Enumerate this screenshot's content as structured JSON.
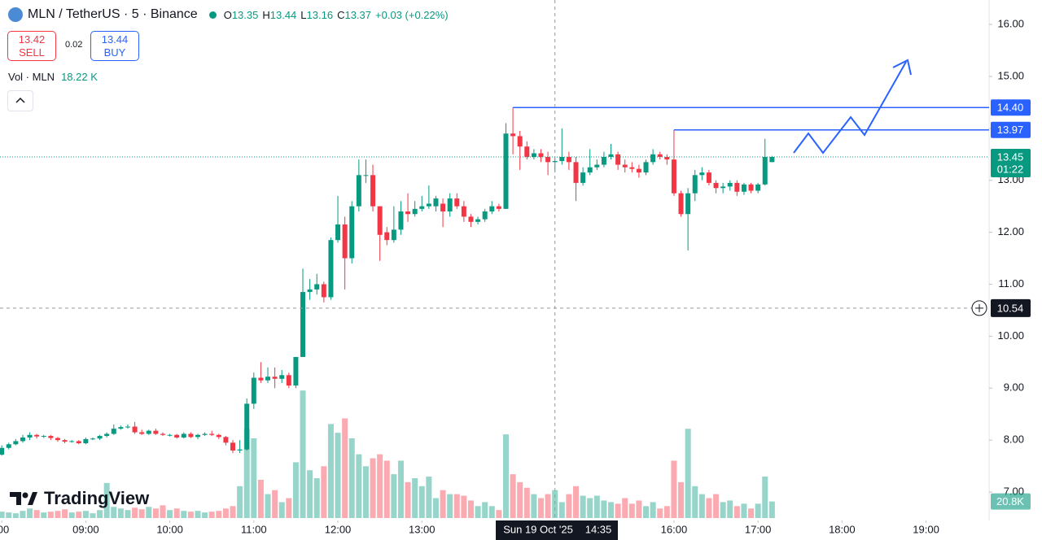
{
  "header": {
    "symbol": "MLN / TetherUS · 5 · Binance",
    "ohlc": [
      {
        "label": "O",
        "value": 13.35
      },
      {
        "label": "H",
        "value": 13.44
      },
      {
        "label": "L",
        "value": 13.16
      },
      {
        "label": "C",
        "value": 13.37
      }
    ],
    "change": "+0.03 (+0.22%)"
  },
  "trade": {
    "sell_price": 13.42,
    "sell": "SELL",
    "spread": 0.02,
    "buy_price": 13.44,
    "buy": "BUY"
  },
  "volume_legend": {
    "label": "Vol · MLN",
    "value": "18.22 K"
  },
  "logo": "TradingView",
  "chart_data": {
    "type": "candlestick",
    "up_color": "#089981",
    "down_color": "#f23645",
    "xlim": [
      -0.25,
      141
    ],
    "xticks": [
      {
        "value": 0,
        "label": ":00"
      },
      {
        "value": 12,
        "label": "09:00"
      },
      {
        "value": 24,
        "label": "10:00"
      },
      {
        "value": 36,
        "label": "11:00"
      },
      {
        "value": 48,
        "label": "12:00"
      },
      {
        "value": 60,
        "label": "13:00"
      },
      {
        "value": 96,
        "label": "16:00"
      },
      {
        "value": 108,
        "label": "17:00"
      },
      {
        "value": 120,
        "label": "18:00"
      },
      {
        "value": 132,
        "label": "19:00"
      }
    ],
    "ylim": [
      6.5,
      16.47
    ],
    "yticks": [
      {
        "value": 16,
        "label": "16.00"
      },
      {
        "value": 15,
        "label": "15.00"
      },
      {
        "value": 14,
        "label": "14.00"
      },
      {
        "value": 13,
        "label": "13.00"
      },
      {
        "value": 12,
        "label": "12.00"
      },
      {
        "value": 11,
        "label": "11.00"
      },
      {
        "value": 10,
        "label": "10.00"
      },
      {
        "value": 9,
        "label": "9.00"
      },
      {
        "value": 8,
        "label": "8.00"
      },
      {
        "value": 7,
        "label": "7.00"
      }
    ],
    "open": [
      7.72,
      7.85,
      7.92,
      7.98,
      8.05,
      8.1,
      8.07,
      8.08,
      8.04,
      8.0,
      7.97,
      7.98,
      7.94,
      8.02,
      8.03,
      8.08,
      8.12,
      8.22,
      8.25,
      8.26,
      8.15,
      8.12,
      8.18,
      8.12,
      8.1,
      8.1,
      8.05,
      8.12,
      8.06,
      8.1,
      8.12,
      8.1,
      8.06,
      7.95,
      7.8,
      7.82,
      8.7,
      9.2,
      9.15,
      9.22,
      9.18,
      9.25,
      9.05,
      9.6,
      10.85,
      10.9,
      11.0,
      10.75,
      11.85,
      12.15,
      11.5,
      12.5,
      13.1,
      13.1,
      12.5,
      12.0,
      11.85,
      12.05,
      12.4,
      12.35,
      12.45,
      12.5,
      12.5,
      12.55,
      12.4,
      12.65,
      12.5,
      12.3,
      12.2,
      12.25,
      12.4,
      12.5,
      12.45,
      13.9,
      13.85,
      13.65,
      13.45,
      13.52,
      13.45,
      13.35,
      13.37,
      13.45,
      13.35,
      12.95,
      13.15,
      13.25,
      13.3,
      13.45,
      13.5,
      13.3,
      13.25,
      13.22,
      13.15,
      13.35,
      13.5,
      13.45,
      13.4,
      12.75,
      12.35,
      12.75,
      13.1,
      13.15,
      12.95,
      12.85,
      12.88,
      12.95,
      12.78,
      12.92,
      12.8,
      12.92,
      13.35
    ],
    "high": [
      7.9,
      7.95,
      8.02,
      8.1,
      8.15,
      8.12,
      8.1,
      8.1,
      8.06,
      8.02,
      8.0,
      8.0,
      8.05,
      8.05,
      8.1,
      8.15,
      8.3,
      8.28,
      8.3,
      8.35,
      8.2,
      8.2,
      8.22,
      8.15,
      8.12,
      8.12,
      8.15,
      8.15,
      8.12,
      8.15,
      8.18,
      8.12,
      8.08,
      8.0,
      8.0,
      8.8,
      9.3,
      9.5,
      9.4,
      9.4,
      9.35,
      9.3,
      9.6,
      11.3,
      11.1,
      11.2,
      11.05,
      11.9,
      12.7,
      12.3,
      12.6,
      13.4,
      13.4,
      13.3,
      12.5,
      12.1,
      12.5,
      12.6,
      12.75,
      12.6,
      12.7,
      12.9,
      12.7,
      12.65,
      12.75,
      12.75,
      12.6,
      12.35,
      12.3,
      12.45,
      12.6,
      12.55,
      14.1,
      14.4,
      13.95,
      13.75,
      13.6,
      13.6,
      13.55,
      13.44,
      14.0,
      13.55,
      13.45,
      13.25,
      13.6,
      13.4,
      13.55,
      13.7,
      13.55,
      13.4,
      13.35,
      13.3,
      13.4,
      13.6,
      13.55,
      13.5,
      13.97,
      12.8,
      12.85,
      13.2,
      13.25,
      13.2,
      13.0,
      12.95,
      13.0,
      13.0,
      12.95,
      12.95,
      12.95,
      13.8,
      13.47
    ],
    "low": [
      7.7,
      7.82,
      7.9,
      7.95,
      8.0,
      8.03,
      8.04,
      8.0,
      7.97,
      7.94,
      7.95,
      7.92,
      7.92,
      8.0,
      8.0,
      8.05,
      8.1,
      8.2,
      8.22,
      8.12,
      8.1,
      8.1,
      8.1,
      8.08,
      8.07,
      8.03,
      8.03,
      8.04,
      8.02,
      8.08,
      8.08,
      8.02,
      7.9,
      7.75,
      7.75,
      7.8,
      8.6,
      9.1,
      9.1,
      9.0,
      9.1,
      9.0,
      9.0,
      9.6,
      10.7,
      10.8,
      10.65,
      10.7,
      11.8,
      10.9,
      11.4,
      12.4,
      12.95,
      12.4,
      11.45,
      11.75,
      11.8,
      11.95,
      12.2,
      12.3,
      12.4,
      12.45,
      12.4,
      12.1,
      12.3,
      12.45,
      12.2,
      12.1,
      12.15,
      12.2,
      12.35,
      12.4,
      12.45,
      13.5,
      13.2,
      13.4,
      13.4,
      13.35,
      13.1,
      13.16,
      13.3,
      13.2,
      12.6,
      12.9,
      13.1,
      13.2,
      13.25,
      13.4,
      13.2,
      13.15,
      13.15,
      13.05,
      13.1,
      13.3,
      13.4,
      13.3,
      12.7,
      12.3,
      11.65,
      12.6,
      13.0,
      12.9,
      12.75,
      12.75,
      12.8,
      12.7,
      12.72,
      12.75,
      12.75,
      12.9,
      13.35
    ],
    "close": [
      7.85,
      7.92,
      7.98,
      8.05,
      8.1,
      8.07,
      8.08,
      8.04,
      8.0,
      7.97,
      7.98,
      7.94,
      8.02,
      8.03,
      8.08,
      8.12,
      8.22,
      8.25,
      8.26,
      8.15,
      8.12,
      8.18,
      8.12,
      8.1,
      8.1,
      8.05,
      8.12,
      8.06,
      8.1,
      8.12,
      8.1,
      8.06,
      7.95,
      7.8,
      7.82,
      8.7,
      9.2,
      9.15,
      9.22,
      9.18,
      9.25,
      9.05,
      9.6,
      10.85,
      10.9,
      11.0,
      10.75,
      11.85,
      12.15,
      11.5,
      12.5,
      13.1,
      13.1,
      12.5,
      11.95,
      11.85,
      12.05,
      12.4,
      12.35,
      12.45,
      12.5,
      12.55,
      12.65,
      12.4,
      12.65,
      12.5,
      12.3,
      12.2,
      12.25,
      12.4,
      12.5,
      12.45,
      13.9,
      13.85,
      13.65,
      13.45,
      13.52,
      13.45,
      13.35,
      13.37,
      13.45,
      13.35,
      12.95,
      13.15,
      13.25,
      13.3,
      13.45,
      13.5,
      13.3,
      13.25,
      13.22,
      13.15,
      13.35,
      13.5,
      13.45,
      13.4,
      12.75,
      12.35,
      12.75,
      13.1,
      13.15,
      12.95,
      12.85,
      12.88,
      12.95,
      12.78,
      12.92,
      12.8,
      12.92,
      13.45,
      13.45
    ],
    "volume": [
      8,
      7,
      6,
      9,
      12,
      10,
      7,
      8,
      9,
      11,
      7,
      8,
      9,
      6,
      10,
      44,
      14,
      12,
      10,
      13,
      11,
      14,
      12,
      16,
      10,
      12,
      9,
      8,
      9,
      7,
      8,
      9,
      12,
      15,
      40,
      112,
      100,
      48,
      30,
      35,
      20,
      25,
      70,
      160,
      60,
      50,
      65,
      118,
      107,
      125,
      100,
      80,
      65,
      75,
      80,
      72,
      55,
      72,
      45,
      50,
      40,
      52,
      25,
      35,
      30,
      30,
      28,
      22,
      15,
      20,
      15,
      10,
      105,
      55,
      45,
      38,
      30,
      25,
      30,
      35,
      20,
      30,
      40,
      28,
      25,
      28,
      22,
      20,
      18,
      25,
      18,
      22,
      15,
      20,
      12,
      15,
      72,
      45,
      112,
      40,
      30,
      25,
      30,
      20,
      22,
      15,
      18,
      12,
      18,
      52,
      20.8
    ],
    "last_volume_label": "20.8K",
    "last_price": 13.45,
    "countdown": "01:22",
    "levels": [
      {
        "value": 14.4,
        "label": "14.40"
      },
      {
        "value": 13.97,
        "label": "13.97"
      }
    ],
    "crosshair": {
      "price": 10.54,
      "date": "Sun 19 Oct '25",
      "time": "14:35"
    }
  }
}
